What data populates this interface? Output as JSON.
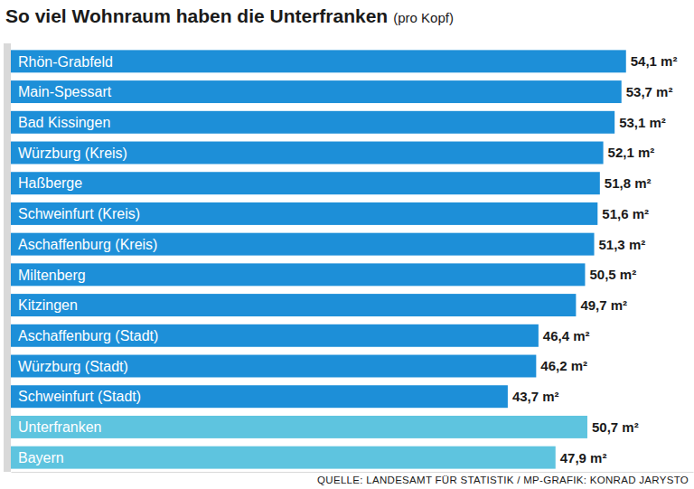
{
  "chart_data": {
    "type": "bar",
    "orientation": "horizontal",
    "title": "So viel Wohnraum haben die Unterfranken",
    "subtitle": "(pro Kopf)",
    "annotations": [
      "QUELLE: LANDESAMT FÜR STATISTIK / MP-GRAFIK: KONRAD JARYSTO"
    ],
    "categories": [
      "Rhön-Grabfeld",
      "Main-Spessart",
      "Bad Kissingen",
      "Würzburg (Kreis)",
      "Haßberge",
      "Schweinfurt (Kreis)",
      "Aschaffenburg (Kreis)",
      "Miltenberg",
      "Kitzingen",
      "Aschaffenburg (Stadt)",
      "Würzburg (Stadt)",
      "Schweinfurt (Stadt)",
      "Unterfranken",
      "Bayern"
    ],
    "values": [
      54.1,
      53.7,
      53.1,
      52.1,
      51.8,
      51.6,
      51.3,
      50.5,
      49.7,
      46.4,
      46.2,
      43.7,
      50.7,
      47.9
    ],
    "value_labels": [
      "54,1 m²",
      "53,7 m²",
      "53,1 m²",
      "52,1 m²",
      "51,8 m²",
      "51,6 m²",
      "51,3 m²",
      "50,5 m²",
      "49,7 m²",
      "46,4 m²",
      "46,2 m²",
      "43,7 m²",
      "50,7 m²",
      "47,9 m²"
    ],
    "colors": [
      "#1d8fd8",
      "#1d8fd8",
      "#1d8fd8",
      "#1d8fd8",
      "#1d8fd8",
      "#1d8fd8",
      "#1d8fd8",
      "#1d8fd8",
      "#1d8fd8",
      "#1d8fd8",
      "#1d8fd8",
      "#1d8fd8",
      "#5ec4df",
      "#5ec4df"
    ],
    "xlim": [
      0,
      60
    ],
    "data_labels": true,
    "tick_labels": false,
    "grid": false
  }
}
